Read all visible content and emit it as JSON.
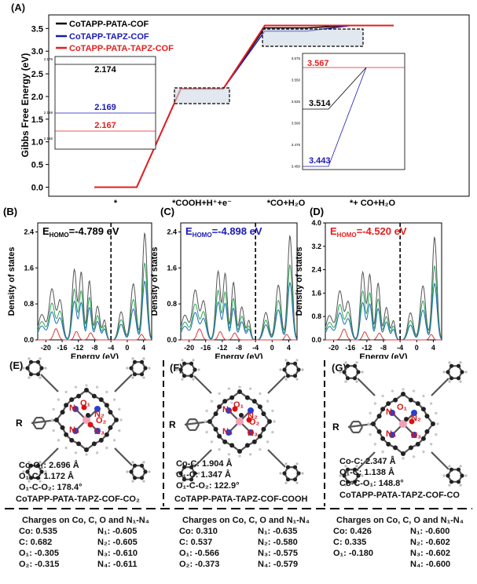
{
  "panelA": {
    "letter": "(A)",
    "ylabel": "Gibbs Free Energy (eV)",
    "yticks": [
      "0.0",
      "0.5",
      "1.0",
      "1.5",
      "2.0",
      "2.5",
      "3.0",
      "3.5"
    ],
    "states": [
      "*",
      "*COOH+H⁺+e⁻",
      "*CO+H₂O",
      "*+ CO+H₂O"
    ],
    "legend": [
      {
        "label": "CoTAPP-PATA-COF",
        "color": "#000000"
      },
      {
        "label": "CoTAPP-TAPZ-COF",
        "color": "#1a1ab4"
      },
      {
        "label": "CoTAPP-PATA-TAPZ-COF",
        "color": "#e21f1f"
      }
    ],
    "inset_left": {
      "values": [
        "2.174",
        "2.169",
        "2.167"
      ],
      "ticks": [
        "2.175",
        "2.169",
        "2.166"
      ]
    },
    "inset_right": {
      "values": [
        "3.567",
        "3.514",
        "3.443"
      ],
      "ticks": [
        "3.575",
        "3.550",
        "3.525",
        "3.500",
        "3.475",
        "3.450"
      ]
    }
  },
  "chart_data": {
    "type": "line",
    "title": "",
    "xlabel": "",
    "ylabel": "Gibbs Free Energy (eV)",
    "ylim": [
      -0.2,
      3.8
    ],
    "categories": [
      "*",
      "*COOH+H+e-",
      "*CO+H2O",
      "*+ CO+H2O"
    ],
    "series": [
      {
        "name": "CoTAPP-PATA-COF",
        "values": [
          0.0,
          2.174,
          3.514,
          3.567
        ]
      },
      {
        "name": "CoTAPP-TAPZ-COF",
        "values": [
          0.0,
          2.169,
          3.443,
          3.567
        ]
      },
      {
        "name": "CoTAPP-PATA-TAPZ-COF",
        "values": [
          0.0,
          2.167,
          3.567,
          3.567
        ]
      }
    ]
  },
  "dos": {
    "ylabel": "Density of states",
    "xlabel": "Energy (eV)",
    "xticks": [
      "-20",
      "-16",
      "-12",
      "-8",
      "-4",
      "0",
      "4"
    ],
    "B": {
      "letter": "(B)",
      "ehomo_prefix": "E",
      "ehomo_sub": "HOMO",
      "ehomo_value": "=-4.789 eV",
      "color": "#000000",
      "yticks": [
        "0.0",
        "0.8",
        "1.6",
        "2.4"
      ]
    },
    "C": {
      "letter": "(C)",
      "ehomo_prefix": "E",
      "ehomo_sub": "HOMO",
      "ehomo_value": "=-4.898 eV",
      "color": "#1a1ab4",
      "yticks": [
        "0.0",
        "0.8",
        "1.6",
        "2.4"
      ]
    },
    "D": {
      "letter": "(D)",
      "ehomo_prefix": "E",
      "ehomo_sub": "HOMO",
      "ehomo_value": "=-4.520 eV",
      "color": "#e21f1f",
      "yticks": [
        "0.0",
        "0.8",
        "1.6",
        "2.4",
        "3.2",
        "4.0"
      ]
    }
  },
  "structures": {
    "E": {
      "letter": "(E)",
      "geometry": [
        "Co-O₁: 2.696 Å",
        "O₁-C: 1.172 Å",
        "O₁-C-O₂: 178.4°"
      ],
      "caption": "CoTAPP-PATA-TAPZ-COF-CO₂",
      "atoms": [
        "N₁",
        "N₂",
        "N₃",
        "N₄",
        "O₁",
        "O₂"
      ],
      "r_label": "R"
    },
    "F": {
      "letter": "(F)",
      "geometry": [
        "Co-C: 1.904 Å",
        "O₁-C: 1.347 Å",
        "O₁-C-O₂: 122.9°"
      ],
      "caption": "CoTAPP-PATA-TAPZ-COF-COOH",
      "atoms": [
        "N₁",
        "N₂",
        "N₃",
        "N₄",
        "O₁",
        "O₂"
      ],
      "r_label": "R"
    },
    "G": {
      "letter": "(G)",
      "geometry": [
        "Co-C: 2.347 Å",
        "O₁-C: 1.138 Å",
        "Co-C-O₁: 148.8°"
      ],
      "caption": "CoTAPP-PATA-TAPZ-COF-CO",
      "atoms": [
        "N₁",
        "N₂",
        "N₃",
        "N₄",
        "O₁"
      ],
      "r_label": "R"
    }
  },
  "charges": {
    "header": "Charges on  Co, C, O and N₁-N₄",
    "E": [
      [
        "Co: 0.535",
        "N₁: -0.605"
      ],
      [
        "C: 0.682",
        "N₂: -0.605"
      ],
      [
        "O₁: -0.305",
        "N₃: -0.610"
      ],
      [
        "O₂: -0.315",
        "N₄: -0.611"
      ]
    ],
    "F": [
      [
        "Co: 0.310",
        "N₁: -0.635"
      ],
      [
        "C: 0.537",
        "N₂: -0.580"
      ],
      [
        "O₁: -0.566",
        "N₃: -0.575"
      ],
      [
        "O₂: -0.373",
        "N₄: -0.579"
      ]
    ],
    "G": [
      [
        "Co: 0.426",
        "N₁: -0.600"
      ],
      [
        "C: 0.335",
        "N₂: -0.602"
      ],
      [
        "O₁: -0.180",
        "N₃: -0.602"
      ],
      [
        "",
        "N₄: -0.600"
      ]
    ]
  }
}
